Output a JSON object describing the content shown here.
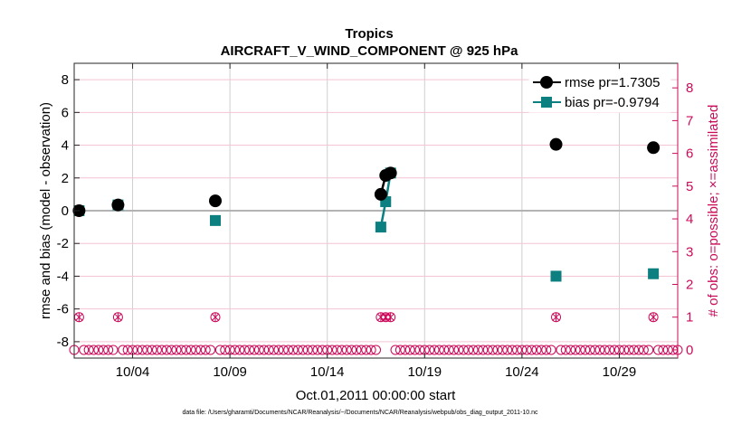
{
  "chart_data": {
    "type": "line",
    "title": "Tropics",
    "subtitle": "AIRCRAFT_V_WIND_COMPONENT @ 925 hPa",
    "xlabel": "Oct.01,2011 00:00:00 start",
    "ylabel": "rmse and bias (model - observation)",
    "y2label": "# of obs: o=possible; ×=assimilated",
    "footnote": "data file: /Users/gharamti/Documents/NCAR/Reanalysis/~/Documents/NCAR/Reanalysis/webpub/obs_diag_output_2011-10.nc",
    "xlim": [
      1.0,
      32.0
    ],
    "ylim": [
      -9,
      9
    ],
    "y2lim": [
      -0.25,
      8.75
    ],
    "x_ticks": [
      4,
      9,
      14,
      19,
      24,
      29
    ],
    "x_tick_labels": [
      "10/04",
      "10/09",
      "10/14",
      "10/19",
      "10/24",
      "10/29"
    ],
    "y_ticks": [
      -8,
      -6,
      -4,
      -2,
      0,
      2,
      4,
      6,
      8
    ],
    "y_tick_labels": [
      "-8",
      "-6",
      "-4",
      "-2",
      "0",
      "2",
      "4",
      "6",
      "8"
    ],
    "y2_ticks": [
      0,
      1,
      2,
      3,
      4,
      5,
      6,
      7,
      8
    ],
    "y2_tick_labels": [
      "0",
      "1",
      "2",
      "3",
      "4",
      "5",
      "6",
      "7",
      "8"
    ],
    "legend_position": "top-right",
    "series": [
      {
        "name": "rmse",
        "legend": "rmse pr=1.7305",
        "color": "#000000",
        "marker": "circle",
        "x": [
          1.25,
          3.25,
          8.25,
          16.75,
          17.0,
          17.25,
          25.75,
          30.75
        ],
        "values": [
          0.0,
          0.35,
          0.6,
          1.0,
          2.15,
          2.3,
          4.05,
          3.85
        ],
        "connected_segments": [
          [
            16.75,
            17.25
          ]
        ]
      },
      {
        "name": "bias",
        "legend": "bias pr=-0.9794",
        "color": "#0c7f80",
        "marker": "square",
        "x": [
          1.25,
          3.25,
          8.25,
          16.75,
          17.0,
          17.25,
          25.75,
          30.75
        ],
        "values": [
          0.0,
          0.35,
          -0.6,
          -1.0,
          0.55,
          2.3,
          -4.0,
          -3.85
        ],
        "connected_segments": [
          [
            16.75,
            17.25
          ]
        ]
      },
      {
        "name": "obs possible",
        "color": "#cc0a5a",
        "marker": "open-circle",
        "axis": "right",
        "values_nonzero": [
          {
            "x": 1.25,
            "value": 1
          },
          {
            "x": 3.25,
            "value": 1
          },
          {
            "x": 8.25,
            "value": 1
          },
          {
            "x": 16.75,
            "value": 1
          },
          {
            "x": 17.0,
            "value": 1
          },
          {
            "x": 17.25,
            "value": 1
          },
          {
            "x": 25.75,
            "value": 1
          },
          {
            "x": 30.75,
            "value": 1
          }
        ],
        "baseline_value": 0
      },
      {
        "name": "obs assimilated",
        "color": "#cc0a5a",
        "marker": "x",
        "axis": "right",
        "values_nonzero": [
          {
            "x": 1.25,
            "value": 1
          },
          {
            "x": 3.25,
            "value": 1
          },
          {
            "x": 8.25,
            "value": 1
          },
          {
            "x": 16.75,
            "value": 1
          },
          {
            "x": 17.0,
            "value": 1
          },
          {
            "x": 17.25,
            "value": 1
          },
          {
            "x": 25.75,
            "value": 1
          },
          {
            "x": 30.75,
            "value": 1
          }
        ],
        "baseline_value": 0
      }
    ],
    "grid": true,
    "zero_line": 0
  },
  "colors": {
    "rmse": "#000000",
    "bias": "#0c7f80",
    "obs": "#cc0a5a",
    "grid_x": "#cfcfcf",
    "grid_y": "#f2c4d4",
    "zero": "#b3b3b3"
  }
}
